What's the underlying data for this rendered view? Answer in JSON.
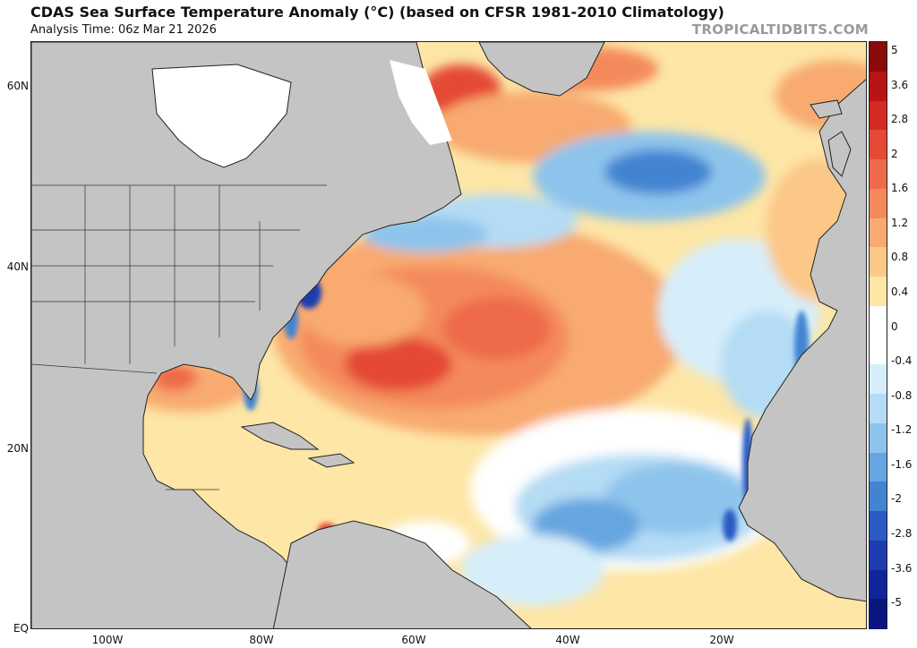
{
  "header": {
    "title": "CDAS Sea Surface Temperature Anomaly (°C) (based on CFSR 1981-2010 Climatology)",
    "analysis_time": "Analysis Time: 06z Mar 21 2026",
    "brand": "TROPICALTIDBITS.COM"
  },
  "axes": {
    "lat_labels": [
      "60N",
      "40N",
      "20N",
      "EQ"
    ],
    "lon_labels": [
      "100W",
      "80W",
      "60W",
      "40W",
      "20W"
    ]
  },
  "colorbar": {
    "labels": [
      "5",
      "3.6",
      "2.8",
      "2",
      "1.6",
      "1.2",
      "0.8",
      "0.4",
      "0",
      "-0.4",
      "-0.8",
      "-1.2",
      "-1.6",
      "-2",
      "-2.8",
      "-3.6",
      "-5"
    ],
    "colors": [
      "#8b0a0a",
      "#b81414",
      "#d42a22",
      "#e44a36",
      "#ee6a4a",
      "#f48a5c",
      "#f8aa70",
      "#fbc888",
      "#fde6a6",
      "#ffffff",
      "#ffffff",
      "#d6eefa",
      "#b4dcf4",
      "#8ec4ec",
      "#66a6e0",
      "#4284d2",
      "#2a5cc4",
      "#1c3cb0",
      "#12249a",
      "#0a1680"
    ]
  },
  "colors": {
    "land": "#c4c4c4",
    "ice": "#ffffff",
    "border": "#222222"
  }
}
